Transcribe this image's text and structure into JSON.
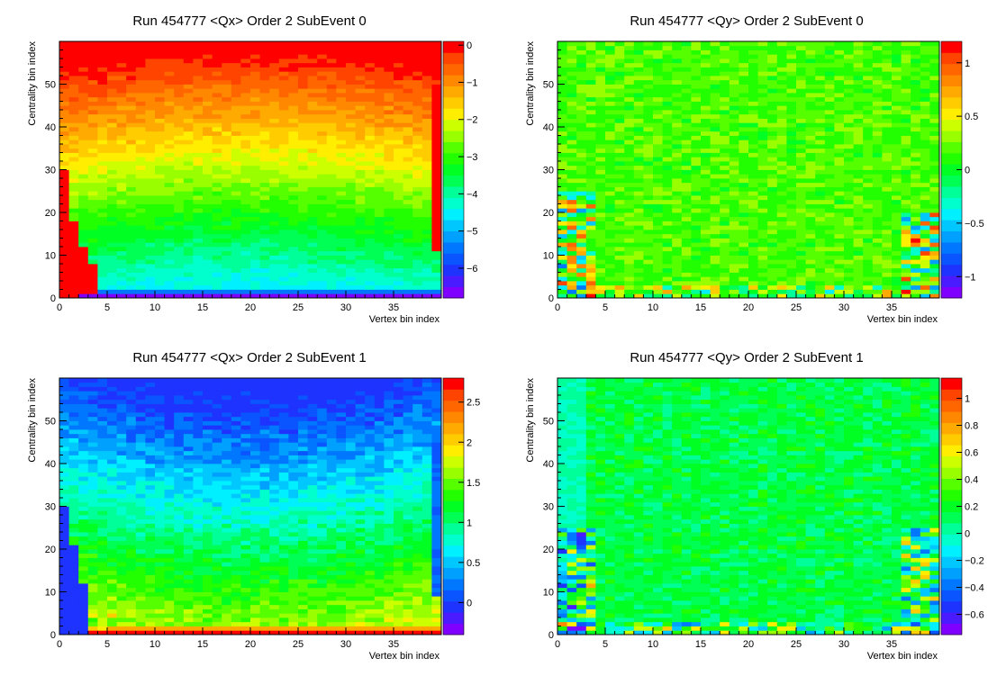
{
  "chart_data": [
    {
      "type": "heatmap",
      "title": "Run 454777  <Qx>  Order 2  SubEvent 0",
      "xlabel": "Vertex  bin  index",
      "ylabel": "Centrality  bin  index",
      "xlim": [
        0,
        40
      ],
      "ylim": [
        0,
        60
      ],
      "nx": 40,
      "ny": 60,
      "x_ticks": [
        0,
        5,
        10,
        15,
        20,
        25,
        30,
        35
      ],
      "y_ticks": [
        0,
        10,
        20,
        30,
        40,
        50
      ],
      "zlim": [
        -6.8,
        0.1
      ],
      "z_ticks": [
        0,
        -1,
        -2,
        -3,
        -4,
        -5,
        -6
      ],
      "z_tick_labels": [
        "0",
        "−1",
        "−2",
        "−3",
        "−4",
        "−5",
        "−6"
      ],
      "model": "qx0"
    },
    {
      "type": "heatmap",
      "title": "Run 454777  <Qy>  Order 2  SubEvent 0",
      "xlabel": "Vertex  bin  index",
      "ylabel": "Centrality  bin  index",
      "xlim": [
        0,
        40
      ],
      "ylim": [
        0,
        60
      ],
      "nx": 40,
      "ny": 60,
      "x_ticks": [
        0,
        5,
        10,
        15,
        20,
        25,
        30,
        35
      ],
      "y_ticks": [
        0,
        10,
        20,
        30,
        40,
        50
      ],
      "zlim": [
        -1.2,
        1.2
      ],
      "z_ticks": [
        1,
        0.5,
        0,
        -0.5,
        -1
      ],
      "z_tick_labels": [
        "1",
        "0.5",
        "0",
        "−0.5",
        "−1"
      ],
      "model": "qy0"
    },
    {
      "type": "heatmap",
      "title": "Run 454777  <Qx>  Order 2  SubEvent 1",
      "xlabel": "Vertex  bin  index",
      "ylabel": "Centrality  bin  index",
      "xlim": [
        0,
        40
      ],
      "ylim": [
        0,
        60
      ],
      "nx": 40,
      "ny": 60,
      "x_ticks": [
        0,
        5,
        10,
        15,
        20,
        25,
        30,
        35
      ],
      "y_ticks": [
        0,
        10,
        20,
        30,
        40,
        50
      ],
      "zlim": [
        -0.4,
        2.8
      ],
      "z_ticks": [
        2.5,
        2,
        1.5,
        1,
        0.5,
        0
      ],
      "z_tick_labels": [
        "2.5",
        "2",
        "1.5",
        "1",
        "0.5",
        "0"
      ],
      "model": "qx1"
    },
    {
      "type": "heatmap",
      "title": "Run 454777  <Qy>  Order 2  SubEvent 1",
      "xlabel": "Vertex  bin  index",
      "ylabel": "Centrality  bin  index",
      "xlim": [
        0,
        40
      ],
      "ylim": [
        0,
        60
      ],
      "nx": 40,
      "ny": 60,
      "x_ticks": [
        0,
        5,
        10,
        15,
        20,
        25,
        30,
        35
      ],
      "y_ticks": [
        0,
        10,
        20,
        30,
        40,
        50
      ],
      "zlim": [
        -0.75,
        1.15
      ],
      "z_ticks": [
        1,
        0.8,
        0.6,
        0.4,
        0.2,
        0,
        -0.2,
        -0.4,
        -0.6
      ],
      "z_tick_labels": [
        "1",
        "0.8",
        "0.6",
        "0.4",
        "0.2",
        "0",
        "−0.2",
        "−0.4",
        "−0.6"
      ],
      "model": "qy1"
    }
  ],
  "palette": [
    "#7f00ff",
    "#4b1bff",
    "#1f33ff",
    "#0a55ff",
    "#0077ff",
    "#00a0ff",
    "#00c8ff",
    "#00f0ff",
    "#00ffcc",
    "#00ff99",
    "#00ff55",
    "#00ff22",
    "#22ff00",
    "#55ff00",
    "#99ff00",
    "#ccff00",
    "#ffee00",
    "#ffcc00",
    "#ffaa00",
    "#ff8800",
    "#ff6600",
    "#ff4400",
    "#ff0000"
  ]
}
